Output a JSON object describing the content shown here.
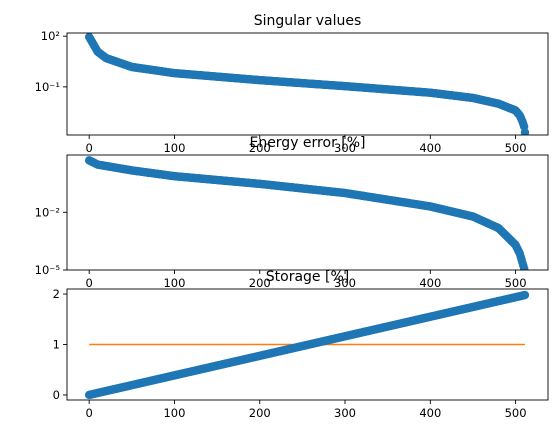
{
  "colors": {
    "series_points": "#1f77b4",
    "series_line": "#ff7f0e",
    "axes": "#000000",
    "background": "#ffffff"
  },
  "chart_data": [
    {
      "type": "scatter",
      "title": "Singular values",
      "xlabel": "",
      "ylabel": "",
      "yscale": "log",
      "xlim": [
        -26,
        538
      ],
      "ylim": [
        0.000141,
        155
      ],
      "x_ticks": [
        0,
        100,
        200,
        300,
        400,
        500
      ],
      "y_ticks": [
        {
          "value": 100,
          "label": "10²"
        },
        {
          "value": 0.1,
          "label": "10⁻¹"
        }
      ],
      "grid": false,
      "legend": "none",
      "x_range": [
        0,
        511
      ],
      "key_points": [
        {
          "x": 0,
          "y": 90
        },
        {
          "x": 10,
          "y": 12
        },
        {
          "x": 20,
          "y": 5
        },
        {
          "x": 50,
          "y": 1.5
        },
        {
          "x": 100,
          "y": 0.65
        },
        {
          "x": 200,
          "y": 0.25
        },
        {
          "x": 300,
          "y": 0.11
        },
        {
          "x": 400,
          "y": 0.045
        },
        {
          "x": 450,
          "y": 0.022
        },
        {
          "x": 480,
          "y": 0.01
        },
        {
          "x": 500,
          "y": 0.004
        },
        {
          "x": 505,
          "y": 0.002
        },
        {
          "x": 508,
          "y": 0.0009
        },
        {
          "x": 510,
          "y": 0.00045
        },
        {
          "x": 511,
          "y": 0.0002
        }
      ]
    },
    {
      "type": "scatter",
      "title": "Energy error [%]",
      "xlabel": "",
      "ylabel": "",
      "yscale": "log",
      "xlim": [
        -26,
        538
      ],
      "ylim": [
        1e-05,
        9.5
      ],
      "x_ticks": [
        0,
        100,
        200,
        300,
        400,
        500
      ],
      "y_ticks": [
        {
          "value": 0.01,
          "label": "10⁻²"
        },
        {
          "value": 1e-05,
          "label": "10⁻⁵"
        }
      ],
      "grid": false,
      "legend": "none",
      "x_range": [
        0,
        511
      ],
      "key_points": [
        {
          "x": 0,
          "y": 5
        },
        {
          "x": 10,
          "y": 3
        },
        {
          "x": 50,
          "y": 1.5
        },
        {
          "x": 100,
          "y": 0.75
        },
        {
          "x": 200,
          "y": 0.3
        },
        {
          "x": 300,
          "y": 0.1
        },
        {
          "x": 400,
          "y": 0.02
        },
        {
          "x": 450,
          "y": 0.006
        },
        {
          "x": 480,
          "y": 0.0015
        },
        {
          "x": 500,
          "y": 0.0002
        },
        {
          "x": 505,
          "y": 7e-05
        },
        {
          "x": 510,
          "y": 1.2e-05
        }
      ]
    },
    {
      "type": "scatter",
      "title": "Storage [%]",
      "xlabel": "",
      "ylabel": "",
      "yscale": "linear",
      "xlim": [
        -26,
        538
      ],
      "ylim": [
        -0.1,
        2.1
      ],
      "x_ticks": [
        0,
        100,
        200,
        300,
        400,
        500
      ],
      "y_ticks": [
        {
          "value": 0,
          "label": "0"
        },
        {
          "value": 1,
          "label": "1"
        },
        {
          "value": 2,
          "label": "2"
        }
      ],
      "grid": false,
      "legend": "none",
      "x_range": [
        0,
        511
      ],
      "line": {
        "x": [
          0,
          511
        ],
        "y": [
          1,
          1
        ]
      },
      "key_points": [
        {
          "x": 0,
          "y": 0
        },
        {
          "x": 511,
          "y": 1.98
        }
      ]
    }
  ]
}
